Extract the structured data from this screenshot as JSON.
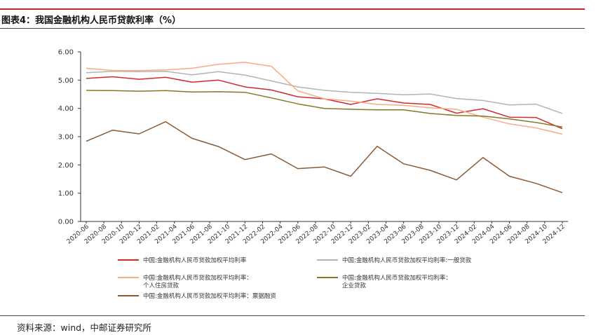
{
  "header": {
    "figure_title": "图表4：我国金融机构人民币贷款利率（%）"
  },
  "footer": {
    "source": "资料来源：wind，中邮证券研究所"
  },
  "colors": {
    "brand_rule": "#c0282d"
  },
  "chart_data": {
    "type": "line",
    "title": "",
    "xlabel": "",
    "ylabel": "",
    "ylim": [
      0,
      6
    ],
    "yticks": [
      "0.00",
      "1.00",
      "2.00",
      "3.00",
      "4.00",
      "5.00",
      "6.00"
    ],
    "grid": false,
    "legend_position": "bottom",
    "categories": [
      "2020-06",
      "2020-08",
      "2020-10",
      "2020-12",
      "2021-02",
      "2021-04",
      "2021-06",
      "2021-08",
      "2021-10",
      "2021-12",
      "2022-02",
      "2022-04",
      "2022-06",
      "2022-08",
      "2022-10",
      "2022-12",
      "2023-02",
      "2023-04",
      "2023-06",
      "2023-08",
      "2023-10",
      "2023-12",
      "2024-02",
      "2024-04",
      "2024-06",
      "2024-08",
      "2024-10",
      "2024-12"
    ],
    "series": [
      {
        "name": "中国:金融机构人民币贷款加权平均利率",
        "legend_lines": [
          "中国:金融机构人民币贷款加权平均利率"
        ],
        "color": "#d12a2f",
        "x": [
          "2020-06",
          "2020-09",
          "2020-12",
          "2021-03",
          "2021-06",
          "2021-09",
          "2021-12",
          "2022-03",
          "2022-06",
          "2022-09",
          "2022-12",
          "2023-03",
          "2023-06",
          "2023-09",
          "2023-12",
          "2024-03",
          "2024-06",
          "2024-09",
          "2024-12"
        ],
        "values": [
          5.06,
          5.12,
          5.03,
          5.1,
          4.93,
          5.0,
          4.76,
          4.65,
          4.41,
          4.34,
          4.14,
          4.34,
          4.19,
          4.14,
          3.83,
          3.99,
          3.69,
          3.68,
          3.28
        ]
      },
      {
        "name": "中国:金融机构人民币贷款加权平均利率:一般贷款",
        "legend_lines": [
          "中国:金融机构人民币贷款加权平均利率:一般贷款"
        ],
        "color": "#b4b4b4",
        "x": [
          "2020-06",
          "2020-09",
          "2020-12",
          "2021-03",
          "2021-06",
          "2021-09",
          "2021-12",
          "2022-03",
          "2022-06",
          "2022-09",
          "2022-12",
          "2023-03",
          "2023-06",
          "2023-09",
          "2023-12",
          "2024-03",
          "2024-06",
          "2024-09",
          "2024-12"
        ],
        "values": [
          5.26,
          5.31,
          5.3,
          5.31,
          5.19,
          5.3,
          5.18,
          4.97,
          4.76,
          4.64,
          4.57,
          4.53,
          4.48,
          4.51,
          4.35,
          4.28,
          4.12,
          4.15,
          3.82
        ]
      },
      {
        "name": "中国:金融机构人民币贷款加权平均利率:个人住房贷款",
        "legend_lines": [
          "中国:金融机构人民币贷款加权平均利率：",
          "个人住房贷款"
        ],
        "color": "#f5ad86",
        "x": [
          "2020-06",
          "2020-09",
          "2020-12",
          "2021-03",
          "2021-06",
          "2021-09",
          "2021-12",
          "2022-03",
          "2022-06",
          "2022-09",
          "2022-12",
          "2023-03",
          "2023-06",
          "2023-09",
          "2023-12",
          "2024-03",
          "2024-06",
          "2024-09",
          "2024-12"
        ],
        "values": [
          5.42,
          5.34,
          5.34,
          5.36,
          5.42,
          5.56,
          5.63,
          5.49,
          4.62,
          4.34,
          4.26,
          4.14,
          4.11,
          4.02,
          3.97,
          3.69,
          3.45,
          3.31,
          3.09
        ]
      },
      {
        "name": "中国:金融机构人民币贷款加权平均利率:企业贷款",
        "legend_lines": [
          "中国:金融机构人民币贷款加权平均利率：",
          "企业贷款"
        ],
        "color": "#857927",
        "x": [
          "2020-06",
          "2020-09",
          "2020-12",
          "2021-03",
          "2021-06",
          "2021-09",
          "2021-12",
          "2022-03",
          "2022-06",
          "2022-09",
          "2022-12",
          "2023-03",
          "2023-06",
          "2023-09",
          "2023-12",
          "2024-03",
          "2024-06",
          "2024-09",
          "2024-12"
        ],
        "values": [
          4.64,
          4.63,
          4.61,
          4.63,
          4.58,
          4.59,
          4.57,
          4.37,
          4.16,
          4.0,
          3.97,
          3.95,
          3.95,
          3.82,
          3.75,
          3.73,
          3.63,
          3.5,
          3.34
        ]
      },
      {
        "name": "中国:金融机构人民币贷款加权平均利率:票据融资",
        "legend_lines": [
          "中国:金融机构人民币贷款加权平均利率：票据融资"
        ],
        "color": "#8b5a35",
        "x": [
          "2020-06",
          "2020-09",
          "2020-12",
          "2021-03",
          "2021-06",
          "2021-09",
          "2021-12",
          "2022-03",
          "2022-06",
          "2022-09",
          "2022-12",
          "2023-03",
          "2023-06",
          "2023-09",
          "2023-12",
          "2024-03",
          "2024-06",
          "2024-09",
          "2024-12"
        ],
        "values": [
          2.84,
          3.23,
          3.1,
          3.53,
          2.94,
          2.65,
          2.19,
          2.39,
          1.87,
          1.93,
          1.6,
          2.66,
          2.04,
          1.81,
          1.47,
          2.26,
          1.6,
          1.35,
          1.02
        ]
      }
    ]
  }
}
